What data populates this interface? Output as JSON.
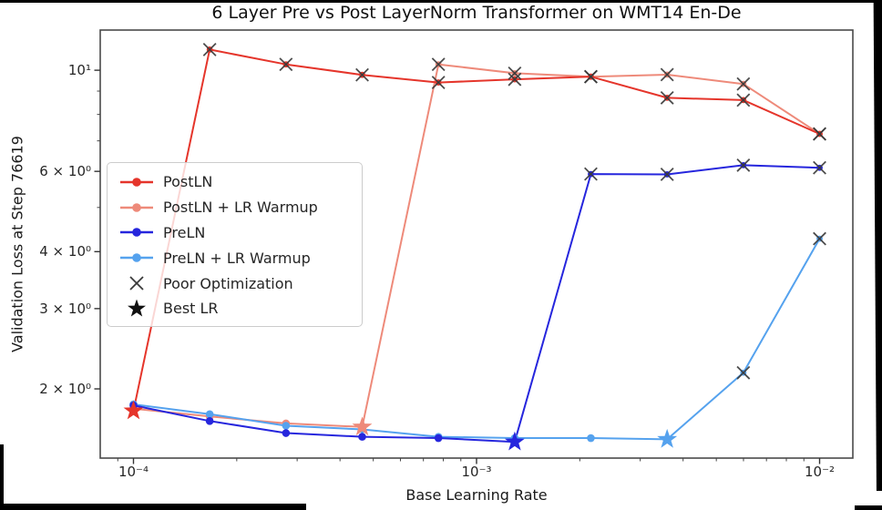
{
  "chart_data": {
    "type": "line",
    "title": "6 Layer Pre vs Post LayerNorm Transformer on WMT14 En-De",
    "xlabel": "Base Learning Rate",
    "ylabel": "Validation Loss at Step 76619",
    "xscale": "log",
    "yscale": "log",
    "xlim": [
      8e-05,
      0.0125
    ],
    "ylim": [
      1.41,
      12.25
    ],
    "grid": false,
    "x": [
      0.0001,
      0.0001668,
      0.0002783,
      0.0004642,
      0.0007743,
      0.001292,
      0.002154,
      0.003594,
      0.005995,
      0.01
    ],
    "series": [
      {
        "name": "PostLN",
        "color": "#e5352b",
        "values": [
          1.79,
          11.1,
          10.3,
          9.77,
          9.4,
          9.55,
          9.68,
          8.7,
          8.6,
          7.25
        ],
        "markers": [
          "star",
          "x",
          "x",
          "x",
          "x",
          "x",
          "x",
          "x",
          "x",
          "x"
        ],
        "best_lr": 0.0001
      },
      {
        "name": "PostLN + LR Warmup",
        "color": "#ee8a7a",
        "values": [
          1.81,
          1.74,
          1.68,
          1.65,
          10.3,
          9.85,
          9.68,
          9.78,
          9.33,
          7.25
        ],
        "markers": [
          "dot",
          "dot",
          "dot",
          "star",
          "x",
          "x",
          "x",
          "x",
          "x",
          "x"
        ],
        "best_lr": 0.0004642
      },
      {
        "name": "PreLN",
        "color": "#2626dd",
        "values": [
          1.84,
          1.7,
          1.6,
          1.57,
          1.56,
          1.53,
          5.92,
          5.91,
          6.19,
          6.11
        ],
        "markers": [
          "dot",
          "dot",
          "dot",
          "dot",
          "dot",
          "star",
          "x",
          "x",
          "x",
          "x"
        ],
        "best_lr": 0.001292
      },
      {
        "name": "PreLN + LR Warmup",
        "color": "#55a2ee",
        "values": [
          1.85,
          1.76,
          1.66,
          1.63,
          1.57,
          1.56,
          1.56,
          1.55,
          2.17,
          4.27
        ],
        "markers": [
          "dot",
          "dot",
          "dot",
          "dot",
          "dot",
          "dot",
          "dot",
          "star",
          "x",
          "x"
        ],
        "best_lr": 0.003594
      }
    ],
    "xticks": [
      {
        "value": 0.0001,
        "label": "10⁻⁴"
      },
      {
        "value": 0.001,
        "label": "10⁻³"
      },
      {
        "value": 0.01,
        "label": "10⁻²"
      }
    ],
    "yticks": [
      {
        "value": 10,
        "label": "10¹"
      },
      {
        "value": 6,
        "label": "6 × 10⁰"
      },
      {
        "value": 4,
        "label": "4 × 10⁰"
      },
      {
        "value": 3,
        "label": "3 × 10⁰"
      },
      {
        "value": 2,
        "label": "2 × 10⁰"
      }
    ],
    "x_minor_ticks": [
      9e-05,
      0.0002,
      0.0003,
      0.0004,
      0.0005,
      0.0006,
      0.0007,
      0.0008,
      0.0009,
      0.002,
      0.003,
      0.004,
      0.005,
      0.006,
      0.007,
      0.008,
      0.009
    ],
    "y_minor_ticks": [
      5,
      7,
      8,
      9
    ],
    "marker_colors": {
      "poor_optimization_x": "#3a3a3a",
      "legend_best_lr_star": "#111111"
    },
    "legend": {
      "position": "center-left",
      "items": [
        {
          "label": "PostLN",
          "marker": "line-dot",
          "color": "#e5352b"
        },
        {
          "label": "PostLN + LR Warmup",
          "marker": "line-dot",
          "color": "#ee8a7a"
        },
        {
          "label": "PreLN",
          "marker": "line-dot",
          "color": "#2626dd"
        },
        {
          "label": "PreLN + LR Warmup",
          "marker": "line-dot",
          "color": "#55a2ee"
        },
        {
          "label": "Poor Optimization",
          "marker": "x",
          "color": "#3a3a3a"
        },
        {
          "label": "Best LR",
          "marker": "star",
          "color": "#111111"
        }
      ]
    }
  }
}
